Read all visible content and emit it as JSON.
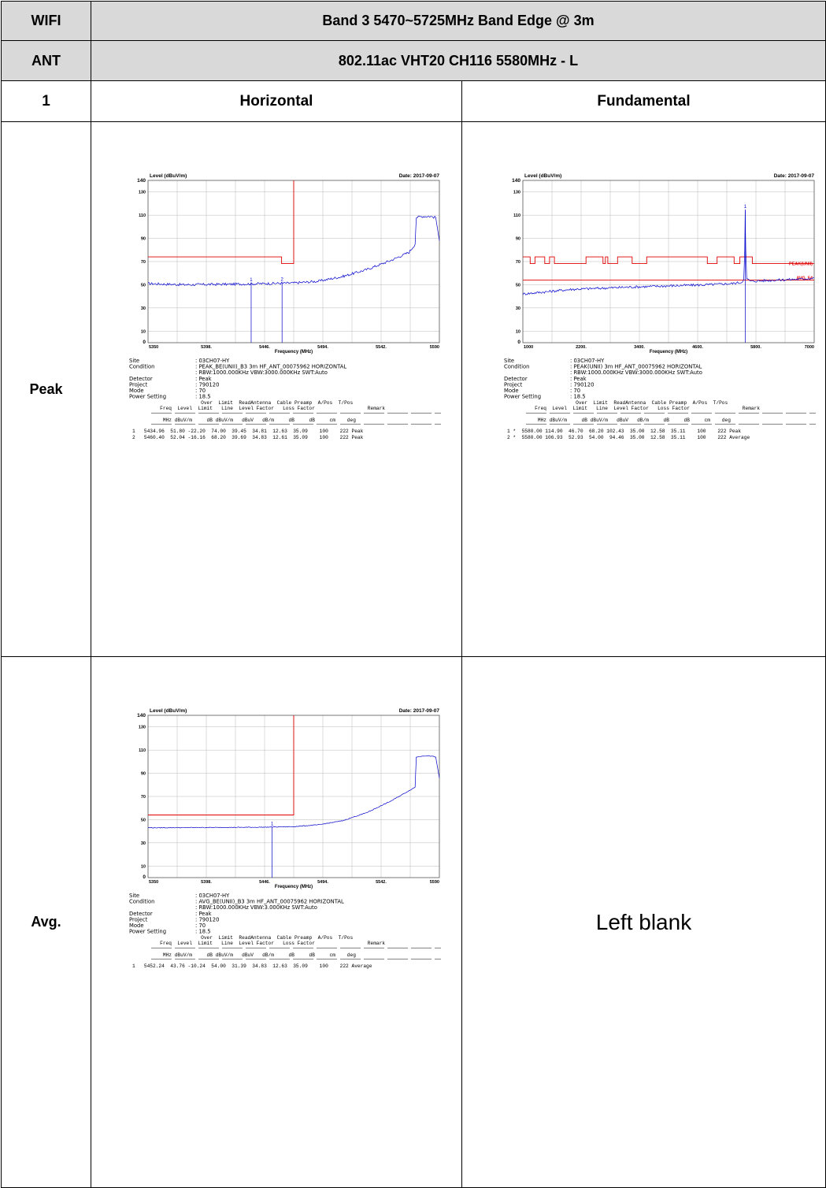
{
  "header": {
    "row1_label": "WIFI",
    "row1_value": "Band 3 5470~5725MHz Band Edge @ 3m",
    "row2_label": "ANT",
    "row2_value": "802.11ac VHT20 CH116 5580MHz - L",
    "col_id": "1",
    "col_left": "Horizontal",
    "col_right": "Fundamental"
  },
  "rows": {
    "peak_label": "Peak",
    "avg_label": "Avg.",
    "left_blank": "Left blank"
  },
  "plots": [
    {
      "id": "peak-band-edge",
      "chart_data": {
        "type": "line",
        "ylabel": "Level (dBuV/m)",
        "xlabel": "Frequency (MHz)",
        "date": "Date: 2017-09-07",
        "xlim": [
          5350,
          5590
        ],
        "ylim": [
          0,
          140
        ],
        "xticks": [
          "5350",
          "5398.",
          "5446.",
          "5494.",
          "5542.",
          "5590"
        ],
        "yticks": [
          "0",
          "10",
          "30",
          "50",
          "70",
          "90",
          "110",
          "130",
          "140"
        ],
        "grid": true,
        "trace_color": "#0000cc",
        "limit_color": "#e00000",
        "limit_line": [
          [
            5350,
            74
          ],
          [
            5460,
            74
          ],
          [
            5460,
            68.2
          ],
          [
            5470,
            68.2
          ],
          [
            5470,
            140
          ]
        ],
        "trace": [
          [
            5350,
            51
          ],
          [
            5380,
            50
          ],
          [
            5420,
            50.5
          ],
          [
            5446,
            51
          ],
          [
            5470,
            51.5
          ],
          [
            5490,
            53
          ],
          [
            5510,
            57
          ],
          [
            5530,
            63
          ],
          [
            5550,
            71
          ],
          [
            5565,
            78
          ],
          [
            5570,
            85
          ],
          [
            5571,
            108
          ],
          [
            5576,
            109
          ],
          [
            5582,
            109
          ],
          [
            5587,
            108
          ],
          [
            5590,
            88
          ]
        ],
        "markers": [
          {
            "label": "1",
            "x": 5434.96,
            "y": 51.8
          },
          {
            "label": "2",
            "x": 5460.4,
            "y": 52.04
          }
        ]
      },
      "info": {
        "site_label": "Site",
        "site": ": 03CH07-HY",
        "condition_label": "Condition",
        "condition": ": PEAK_BE(UNII)_B3 3m HF_ANT_00075962 HORIZONTAL",
        "rbw": ": RBW:1000.000KHz VBW:3000.000KHz SWT:Auto",
        "detector_label": "Detector",
        "detector": ": Peak",
        "project_label": "Project",
        "project": ": 790120",
        "mode_label": "Mode",
        "mode": ": 70",
        "power_label": "Power Setting",
        "power": ": 18.5"
      },
      "table_header1": "                 Over  Limit  ReadAntenna  Cable Preamp  A/Pos  T/Pos",
      "table_header2": "   Freq  Level  Limit   Line  Level Factor   Loss Factor                  Remark",
      "table_units": "    MHz dBuV/m     dB dBuV/m   dBuV   dB/m     dB     dB     cm    deg",
      "table_rows": [
        "1   5434.96  51.80 -22.20  74.00  39.45  34.81  12.63  35.09    100    222 Peak",
        "2   5460.40  52.04 -16.16  68.20  39.69  34.83  12.61  35.09    100    222 Peak"
      ]
    },
    {
      "id": "peak-fundamental",
      "chart_data": {
        "type": "line",
        "ylabel": "Level (dBuV/m)",
        "xlabel": "Frequency (MHz)",
        "date": "Date: 2017-09-07",
        "xlim": [
          1000,
          7000
        ],
        "ylim": [
          0,
          140
        ],
        "xticks": [
          "1000",
          "2200.",
          "3400.",
          "4600.",
          "5800.",
          "7000"
        ],
        "yticks": [
          "0",
          "10",
          "30",
          "50",
          "70",
          "90",
          "110",
          "130",
          "140"
        ],
        "grid": true,
        "trace_color": "#0000cc",
        "limit_color": "#e00000",
        "limit_labels": [
          "PEAK(UNII)",
          "AVG. 54"
        ],
        "limit_line": [
          [
            1000,
            74
          ],
          [
            1150,
            74
          ],
          [
            1150,
            68.2
          ],
          [
            1250,
            68.2
          ],
          [
            1250,
            74
          ],
          [
            1450,
            74
          ],
          [
            1450,
            68.2
          ],
          [
            1550,
            68.2
          ],
          [
            1550,
            74
          ],
          [
            1650,
            74
          ],
          [
            1650,
            68.2
          ],
          [
            2300,
            68.2
          ],
          [
            2300,
            74
          ],
          [
            2650,
            74
          ],
          [
            2650,
            68.2
          ],
          [
            2700,
            68.2
          ],
          [
            2700,
            74
          ],
          [
            2750,
            74
          ],
          [
            2750,
            68.2
          ],
          [
            2950,
            68.2
          ],
          [
            2950,
            74
          ],
          [
            3250,
            74
          ],
          [
            3250,
            68.2
          ],
          [
            3550,
            68.2
          ],
          [
            3550,
            74
          ],
          [
            4800,
            74
          ],
          [
            4800,
            68.2
          ],
          [
            5000,
            68.2
          ],
          [
            5000,
            74
          ],
          [
            5350,
            74
          ],
          [
            5350,
            68.2
          ],
          [
            5470,
            68.2
          ],
          [
            5470,
            74
          ],
          [
            5725,
            74
          ],
          [
            5725,
            68.2
          ],
          [
            7000,
            68.2
          ]
        ],
        "avg_limit": 54,
        "trace": [
          [
            1000,
            42
          ],
          [
            1500,
            44
          ],
          [
            2000,
            46
          ],
          [
            2600,
            47
          ],
          [
            3200,
            48
          ],
          [
            4000,
            49
          ],
          [
            4800,
            50
          ],
          [
            5300,
            51
          ],
          [
            5500,
            52
          ],
          [
            5550,
            55
          ],
          [
            5570,
            80
          ],
          [
            5580,
            114
          ],
          [
            5590,
            80
          ],
          [
            5610,
            55
          ],
          [
            5700,
            53
          ],
          [
            6200,
            54
          ],
          [
            6800,
            55
          ],
          [
            7000,
            56
          ]
        ],
        "markers": [
          {
            "label": "1",
            "x": 5580,
            "y": 114.9
          }
        ]
      },
      "info": {
        "site_label": "Site",
        "site": ": 03CH07-HY",
        "condition_label": "Condition",
        "condition": ": PEAK(UNII) 3m HF_ANT_00075962 HORIZONTAL",
        "rbw": ": RBW:1000.000KHz VBW:3000.000KHz SWT:Auto",
        "detector_label": "Detector",
        "detector": ": Peak",
        "project_label": "Project",
        "project": ": 790120",
        "mode_label": "Mode",
        "mode": ": 70",
        "power_label": "Power Setting",
        "power": ": 18.5"
      },
      "table_header1": "                 Over  Limit  ReadAntenna  Cable Preamp  A/Pos  T/Pos",
      "table_header2": "   Freq  Level  Limit   Line  Level Factor   Loss Factor                  Remark",
      "table_units": "    MHz dBuV/m     dB dBuV/m   dBuV   dB/m     dB     dB     cm    deg",
      "table_rows": [
        "1 *  5580.00 114.90  46.70  68.20 102.43  35.00  12.58  35.11    100    222 Peak",
        "2 *  5580.00 106.93  52.93  54.00  94.46  35.00  12.58  35.11    100    222 Average"
      ]
    },
    {
      "id": "avg-band-edge",
      "chart_data": {
        "type": "line",
        "ylabel": "Level (dBuV/m)",
        "xlabel": "Frequency (MHz)",
        "date": "Date: 2017-09-07",
        "xlim": [
          5350,
          5590
        ],
        "ylim": [
          0,
          140
        ],
        "xticks": [
          "5350",
          "5398.",
          "5446.",
          "5494.",
          "5542.",
          "5590"
        ],
        "yticks": [
          "0",
          "10",
          "30",
          "50",
          "70",
          "90",
          "110",
          "130",
          "140"
        ],
        "grid": true,
        "trace_color": "#0000cc",
        "limit_color": "#e00000",
        "limit_line": [
          [
            5350,
            54
          ],
          [
            5470,
            54
          ],
          [
            5470,
            140
          ]
        ],
        "trace": [
          [
            5350,
            43
          ],
          [
            5400,
            43.2
          ],
          [
            5446,
            43.5
          ],
          [
            5470,
            44
          ],
          [
            5490,
            45.5
          ],
          [
            5510,
            49
          ],
          [
            5530,
            56
          ],
          [
            5550,
            66
          ],
          [
            5565,
            75
          ],
          [
            5570,
            78
          ],
          [
            5571,
            104
          ],
          [
            5576,
            105
          ],
          [
            5582,
            105
          ],
          [
            5587,
            104
          ],
          [
            5590,
            86
          ]
        ],
        "markers": [
          {
            "label": "1",
            "x": 5452.24,
            "y": 43.76
          }
        ]
      },
      "info": {
        "site_label": "Site",
        "site": ": 03CH07-HY",
        "condition_label": "Condition",
        "condition": ": AVG_BE(UNII)_B3 3m HF_ANT_00075962 HORIZONTAL",
        "rbw": ": RBW:1000.000KHz VBW:3.000KHz SWT:Auto",
        "detector_label": "Detector",
        "detector": ": Peak",
        "project_label": "Project",
        "project": ": 790120",
        "mode_label": "Mode",
        "mode": ": 70",
        "power_label": "Power Setting",
        "power": ": 18.5"
      },
      "table_header1": "                 Over  Limit  ReadAntenna  Cable Preamp  A/Pos  T/Pos",
      "table_header2": "   Freq  Level  Limit   Line  Level Factor   Loss Factor                  Remark",
      "table_units": "    MHz dBuV/m     dB dBuV/m   dBuV   dB/m     dB     dB     cm    deg",
      "table_rows": [
        "1   5452.24  43.76 -10.24  54.00  31.39  34.83  12.63  35.09    100    222 Average"
      ]
    }
  ]
}
